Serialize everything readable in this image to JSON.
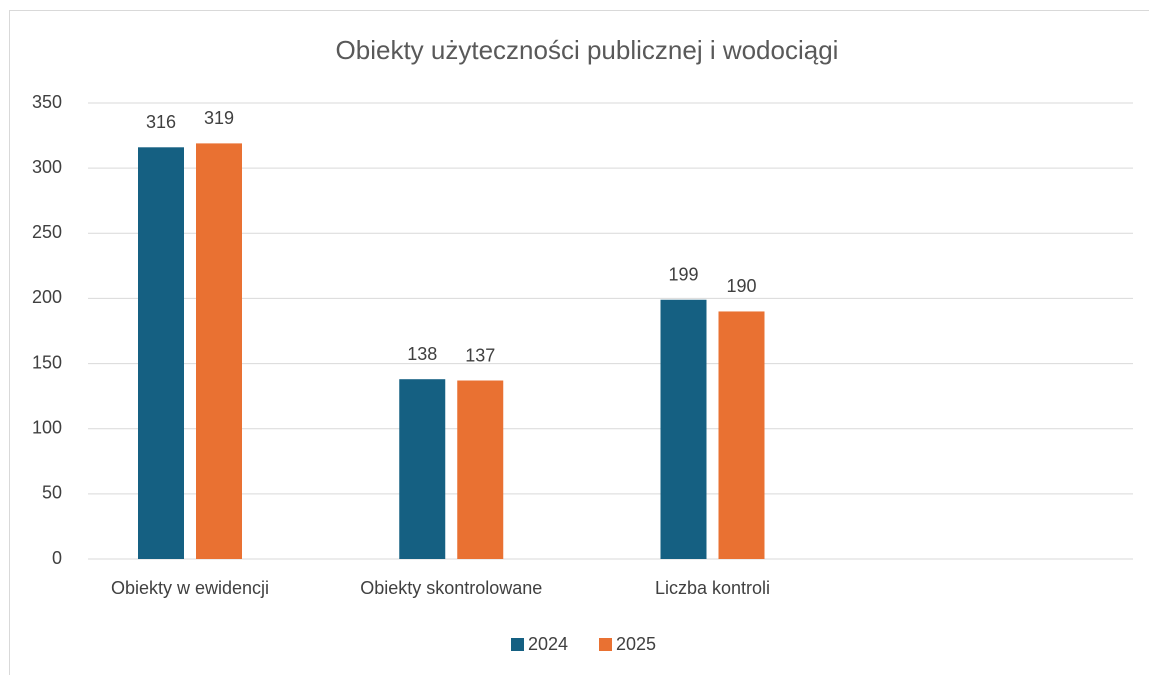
{
  "chart_data": {
    "type": "bar",
    "title": "Obiekty użyteczności publicznej i wodociągi",
    "categories": [
      "Obiekty w ewidencji",
      "Obiekty skontrolowane",
      "Liczba kontroli",
      null
    ],
    "series": [
      {
        "name": "2024",
        "color": "#156082",
        "values": [
          316,
          138,
          199,
          null
        ]
      },
      {
        "name": "2025",
        "color": "#e97132",
        "values": [
          319,
          137,
          190,
          null
        ]
      }
    ],
    "ylim": [
      0,
      350
    ],
    "yticks": [
      0,
      50,
      100,
      150,
      200,
      250,
      300,
      350
    ],
    "grid": true,
    "legend": "bottom"
  }
}
